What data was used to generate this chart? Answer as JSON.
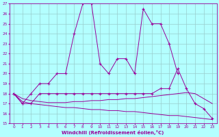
{
  "xlabel": "Windchill (Refroidissement éolien,°C)",
  "x": [
    0,
    1,
    2,
    3,
    4,
    5,
    6,
    7,
    8,
    9,
    10,
    11,
    12,
    13,
    14,
    15,
    16,
    17,
    18,
    19,
    20,
    21,
    22,
    23
  ],
  "line1": [
    18,
    17,
    18,
    19,
    19,
    20,
    20,
    24,
    27,
    27,
    21,
    20,
    21.5,
    21.5,
    20,
    26.5,
    25,
    25,
    23,
    20,
    null,
    null,
    null,
    null
  ],
  "line2": [
    18,
    17,
    17,
    18,
    18,
    18,
    18,
    18,
    18,
    18,
    18,
    18,
    18,
    18,
    18,
    18,
    18,
    18.5,
    18.5,
    20.5,
    18.5,
    17,
    16.5,
    15.5
  ],
  "line3": [
    18,
    17.5,
    17.3,
    17.2,
    17.1,
    17.1,
    17.1,
    17.2,
    17.2,
    17.3,
    17.3,
    17.4,
    17.4,
    17.5,
    17.5,
    17.6,
    17.7,
    17.8,
    17.9,
    18.0,
    18.1,
    18.0,
    17.5,
    17.0
  ],
  "line4": [
    18,
    17.2,
    17.0,
    16.9,
    16.8,
    16.7,
    16.6,
    16.6,
    16.5,
    16.4,
    16.4,
    16.3,
    16.3,
    16.2,
    16.2,
    16.1,
    16.0,
    15.9,
    15.8,
    15.8,
    15.7,
    15.6,
    15.5,
    15.4
  ],
  "color": "#990099",
  "bg_color": "#b3ffff",
  "grid_color": "#99cccc",
  "ylim": [
    15,
    27
  ],
  "xlim": [
    -0.5,
    23
  ],
  "yticks": [
    15,
    16,
    17,
    18,
    19,
    20,
    21,
    22,
    23,
    24,
    25,
    26,
    27
  ],
  "xticks": [
    0,
    1,
    2,
    3,
    4,
    5,
    6,
    7,
    8,
    9,
    10,
    11,
    12,
    13,
    14,
    15,
    16,
    17,
    18,
    19,
    20,
    21,
    22,
    23
  ]
}
